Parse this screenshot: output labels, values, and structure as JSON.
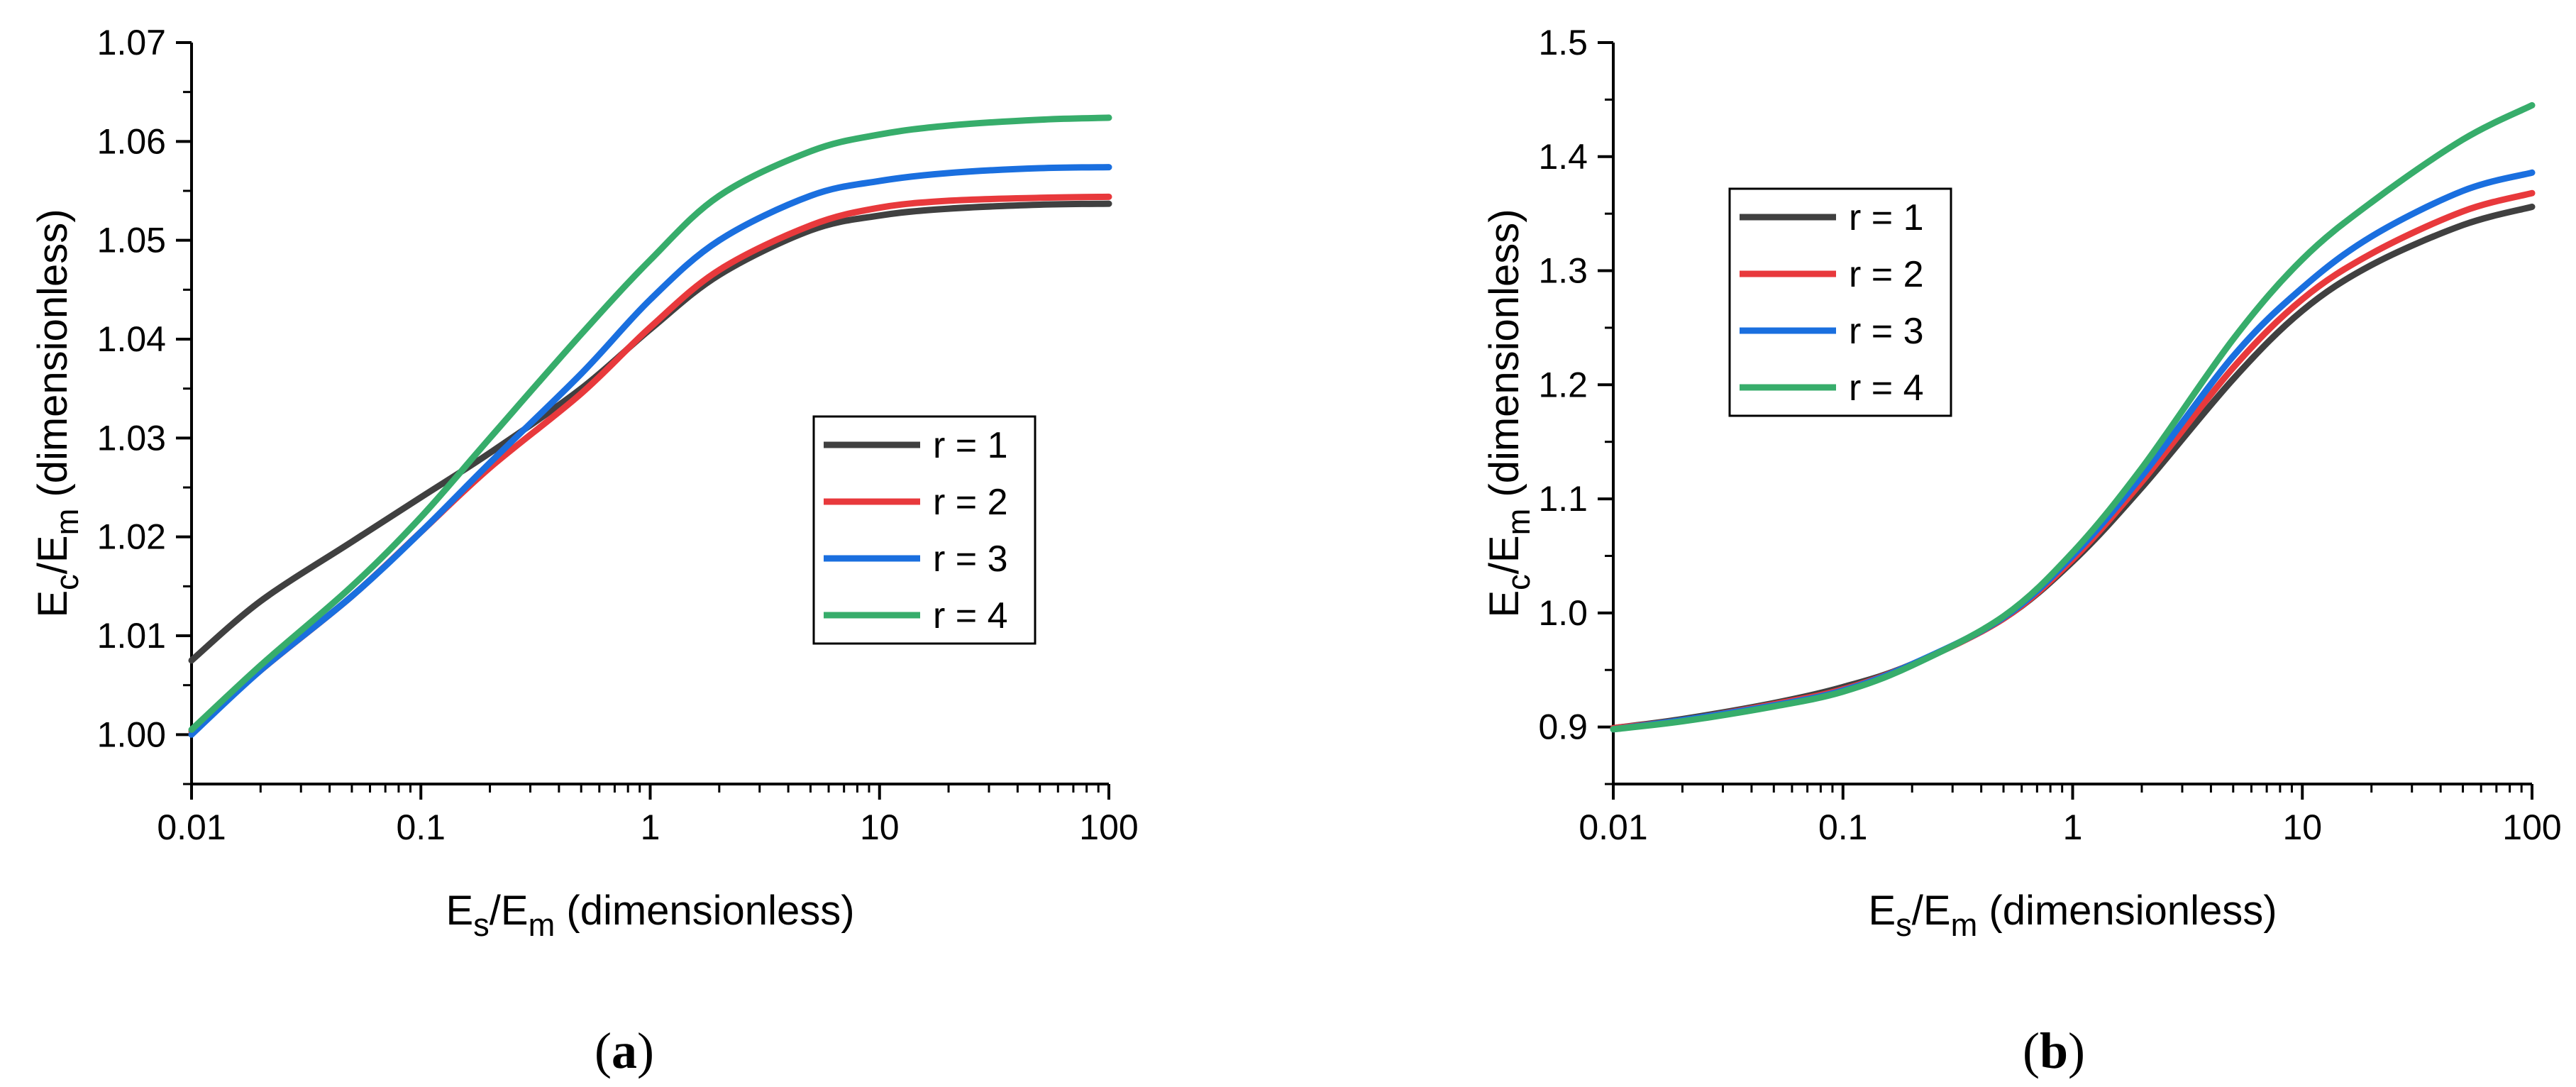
{
  "chart_data": [
    {
      "type": "line",
      "panel_label": "(a)",
      "panel_letter": "a",
      "xlabel": {
        "main": "E",
        "sub1": "s",
        "mid": "/E",
        "sub2": "m",
        "suffix": " (dimensionless)"
      },
      "ylabel": {
        "main": "E",
        "sub1": "c",
        "mid": "/E",
        "sub2": "m",
        "suffix": " (dimensionless)"
      },
      "xscale": "log",
      "xlim": [
        0.01,
        100
      ],
      "ylim": [
        0.995,
        1.07
      ],
      "xticks": [
        0.01,
        0.1,
        1,
        10,
        100
      ],
      "xtick_labels": [
        "0.01",
        "0.1",
        "1",
        "10",
        "100"
      ],
      "yticks": [
        1.0,
        1.01,
        1.02,
        1.03,
        1.04,
        1.05,
        1.06,
        1.07
      ],
      "ytick_labels": [
        "1.00",
        "1.01",
        "1.02",
        "1.03",
        "1.04",
        "1.05",
        "1.06",
        "1.07"
      ],
      "legend_position": "center-right",
      "x": [
        0.01,
        0.02,
        0.05,
        0.1,
        0.2,
        0.5,
        1,
        2,
        5,
        10,
        20,
        50,
        100
      ],
      "series": [
        {
          "name": "r = 1",
          "color": "#404040",
          "values": [
            1.0075,
            1.0135,
            1.0195,
            1.024,
            1.0285,
            1.035,
            1.041,
            1.0465,
            1.051,
            1.0525,
            1.0532,
            1.0536,
            1.0537
          ]
        },
        {
          "name": "r = 2",
          "color": "#e8393c",
          "values": [
            1.0003,
            1.0065,
            1.014,
            1.0205,
            1.027,
            1.0345,
            1.0412,
            1.047,
            1.0515,
            1.0533,
            1.054,
            1.0543,
            1.0544
          ]
        },
        {
          "name": "r = 3",
          "color": "#1a6fdf",
          "values": [
            1.0,
            1.0065,
            1.014,
            1.0205,
            1.0275,
            1.0365,
            1.044,
            1.05,
            1.0545,
            1.056,
            1.0568,
            1.0573,
            1.0574
          ]
        },
        {
          "name": "r = 4",
          "color": "#37ad6b",
          "values": [
            1.0005,
            1.007,
            1.015,
            1.022,
            1.03,
            1.0405,
            1.048,
            1.0545,
            1.059,
            1.0607,
            1.0616,
            1.0622,
            1.0624
          ]
        }
      ]
    },
    {
      "type": "line",
      "panel_label": "(b)",
      "panel_letter": "b",
      "xlabel": {
        "main": "E",
        "sub1": "s",
        "mid": "/E",
        "sub2": "m",
        "suffix": " (dimensionless)"
      },
      "ylabel": {
        "main": "E",
        "sub1": "c",
        "mid": "/E",
        "sub2": "m",
        "suffix": " (dimensionless)"
      },
      "xscale": "log",
      "xlim": [
        0.01,
        100
      ],
      "ylim": [
        0.85,
        1.5
      ],
      "xticks": [
        0.01,
        0.1,
        1,
        10,
        100
      ],
      "xtick_labels": [
        "0.01",
        "0.1",
        "1",
        "10",
        "100"
      ],
      "yticks": [
        0.9,
        1.0,
        1.1,
        1.2,
        1.3,
        1.4,
        1.5
      ],
      "ytick_labels": [
        "0.9",
        "1.0",
        "1.1",
        "1.2",
        "1.3",
        "1.4",
        "1.5"
      ],
      "legend_position": "top-left",
      "x": [
        0.01,
        0.02,
        0.05,
        0.1,
        0.2,
        0.5,
        1,
        2,
        5,
        10,
        20,
        50,
        100
      ],
      "series": [
        {
          "name": "r = 1",
          "color": "#404040",
          "values": [
            0.899,
            0.907,
            0.921,
            0.935,
            0.955,
            0.995,
            1.045,
            1.11,
            1.205,
            1.265,
            1.305,
            1.34,
            1.356
          ]
        },
        {
          "name": "r = 2",
          "color": "#e8393c",
          "values": [
            0.899,
            0.906,
            0.92,
            0.933,
            0.955,
            0.995,
            1.047,
            1.115,
            1.215,
            1.275,
            1.315,
            1.352,
            1.368
          ]
        },
        {
          "name": "r = 3",
          "color": "#1a6fdf",
          "values": [
            0.898,
            0.906,
            0.919,
            0.932,
            0.955,
            0.996,
            1.05,
            1.12,
            1.225,
            1.285,
            1.33,
            1.37,
            1.386
          ]
        },
        {
          "name": "r = 4",
          "color": "#37ad6b",
          "values": [
            0.898,
            0.905,
            0.918,
            0.931,
            0.954,
            0.997,
            1.053,
            1.127,
            1.24,
            1.31,
            1.36,
            1.415,
            1.445
          ]
        }
      ]
    }
  ]
}
